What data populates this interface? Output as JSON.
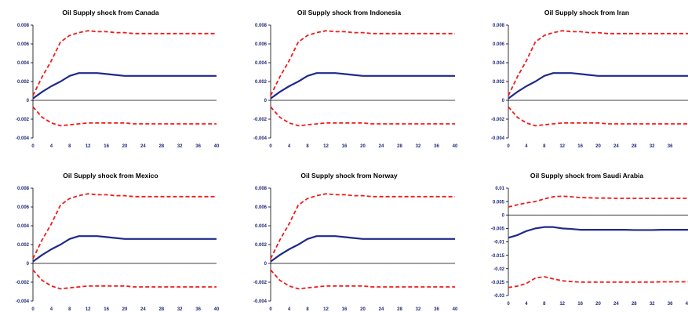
{
  "figure": {
    "axis_color": "#000000",
    "tick_label_color": "#1f2a7a",
    "mean_color": "#1f2a8a",
    "band_color": "#ee1c1c"
  },
  "chart_data": [
    {
      "type": "line",
      "title": "Oil Supply shock from Canada",
      "x_ticks": [
        0,
        4,
        8,
        12,
        16,
        20,
        24,
        28,
        32,
        36,
        40
      ],
      "y_ticks": [
        0.008,
        0.006,
        0.004,
        0.002,
        0,
        -0.002,
        -0.004
      ],
      "y_tick_labels": [
        "0.008",
        "0.006",
        "0.004",
        "0.002",
        "0",
        "-0.002",
        "-0.004"
      ],
      "xlim": [
        0,
        40
      ],
      "ylim": [
        -0.004,
        0.008
      ],
      "x": [
        0,
        2,
        4,
        6,
        8,
        10,
        12,
        14,
        16,
        18,
        20,
        22,
        24,
        26,
        28,
        30,
        32,
        34,
        36,
        38,
        40
      ],
      "series": [
        {
          "style": "solid",
          "values": [
            0.0002,
            0.0009,
            0.0015,
            0.002,
            0.0026,
            0.0029,
            0.0029,
            0.0029,
            0.0028,
            0.0027,
            0.0026,
            0.0026,
            0.0026,
            0.0026,
            0.0026,
            0.0026,
            0.0026,
            0.0026,
            0.0026,
            0.0026,
            0.0026
          ]
        },
        {
          "style": "dashed",
          "values": [
            0.0005,
            0.0025,
            0.0042,
            0.0062,
            0.0069,
            0.0072,
            0.0074,
            0.0073,
            0.0073,
            0.0072,
            0.0072,
            0.0071,
            0.0071,
            0.0071,
            0.0071,
            0.0071,
            0.0071,
            0.0071,
            0.0071,
            0.0071,
            0.0071
          ]
        },
        {
          "style": "dashed",
          "values": [
            -0.0007,
            -0.0018,
            -0.0024,
            -0.0027,
            -0.0026,
            -0.0025,
            -0.0024,
            -0.0024,
            -0.0024,
            -0.0024,
            -0.0024,
            -0.0025,
            -0.0025,
            -0.0025,
            -0.0025,
            -0.0025,
            -0.0025,
            -0.0025,
            -0.0025,
            -0.0025,
            -0.0025
          ]
        }
      ]
    },
    {
      "type": "line",
      "title": "Oil Supply shock from Indonesia",
      "x_ticks": [
        0,
        4,
        8,
        12,
        16,
        20,
        24,
        28,
        32,
        36,
        40
      ],
      "y_ticks": [
        0.008,
        0.006,
        0.004,
        0.002,
        0,
        -0.002,
        -0.004
      ],
      "y_tick_labels": [
        "0.008",
        "0.006",
        "0.004",
        "0.002",
        "0",
        "-0.002",
        "-0.004"
      ],
      "xlim": [
        0,
        40
      ],
      "ylim": [
        -0.004,
        0.008
      ],
      "x": [
        0,
        2,
        4,
        6,
        8,
        10,
        12,
        14,
        16,
        18,
        20,
        22,
        24,
        26,
        28,
        30,
        32,
        34,
        36,
        38,
        40
      ],
      "series": [
        {
          "style": "solid",
          "values": [
            0.0002,
            0.0009,
            0.0015,
            0.002,
            0.0026,
            0.0029,
            0.0029,
            0.0029,
            0.0028,
            0.0027,
            0.0026,
            0.0026,
            0.0026,
            0.0026,
            0.0026,
            0.0026,
            0.0026,
            0.0026,
            0.0026,
            0.0026,
            0.0026
          ]
        },
        {
          "style": "dashed",
          "values": [
            0.0005,
            0.0025,
            0.0042,
            0.0062,
            0.0069,
            0.0072,
            0.0074,
            0.0073,
            0.0073,
            0.0072,
            0.0072,
            0.0071,
            0.0071,
            0.0071,
            0.0071,
            0.0071,
            0.0071,
            0.0071,
            0.0071,
            0.0071,
            0.0071
          ]
        },
        {
          "style": "dashed",
          "values": [
            -0.0007,
            -0.0018,
            -0.0024,
            -0.0027,
            -0.0026,
            -0.0025,
            -0.0024,
            -0.0024,
            -0.0024,
            -0.0024,
            -0.0024,
            -0.0025,
            -0.0025,
            -0.0025,
            -0.0025,
            -0.0025,
            -0.0025,
            -0.0025,
            -0.0025,
            -0.0025,
            -0.0025
          ]
        }
      ]
    },
    {
      "type": "line",
      "title": "Oil Supply shock from Iran",
      "x_ticks": [
        0,
        4,
        8,
        12,
        16,
        20,
        24,
        28,
        32,
        36
      ],
      "y_ticks": [
        0.008,
        0.006,
        0.004,
        0.002,
        0,
        -0.002,
        -0.004
      ],
      "y_tick_labels": [
        "0.008",
        "0.006",
        "0.004",
        "0.002",
        "0",
        "-0.002",
        "-0.004"
      ],
      "xlim": [
        0,
        40
      ],
      "ylim": [
        -0.004,
        0.008
      ],
      "x": [
        0,
        2,
        4,
        6,
        8,
        10,
        12,
        14,
        16,
        18,
        20,
        22,
        24,
        26,
        28,
        30,
        32,
        34,
        36,
        38,
        40
      ],
      "series": [
        {
          "style": "solid",
          "values": [
            0.0002,
            0.0009,
            0.0015,
            0.002,
            0.0026,
            0.0029,
            0.0029,
            0.0029,
            0.0028,
            0.0027,
            0.0026,
            0.0026,
            0.0026,
            0.0026,
            0.0026,
            0.0026,
            0.0026,
            0.0026,
            0.0026,
            0.0026,
            0.0026
          ]
        },
        {
          "style": "dashed",
          "values": [
            0.0005,
            0.0025,
            0.0042,
            0.0062,
            0.0069,
            0.0072,
            0.0074,
            0.0073,
            0.0073,
            0.0072,
            0.0072,
            0.0071,
            0.0071,
            0.0071,
            0.0071,
            0.0071,
            0.0071,
            0.0071,
            0.0071,
            0.0071,
            0.0071
          ]
        },
        {
          "style": "dashed",
          "values": [
            -0.0007,
            -0.0018,
            -0.0024,
            -0.0027,
            -0.0026,
            -0.0025,
            -0.0024,
            -0.0024,
            -0.0024,
            -0.0024,
            -0.0024,
            -0.0025,
            -0.0025,
            -0.0025,
            -0.0025,
            -0.0025,
            -0.0025,
            -0.0025,
            -0.0025,
            -0.0025,
            -0.0025
          ]
        }
      ]
    },
    {
      "type": "line",
      "title": "Oil Supply shock from Mexico",
      "x_ticks": [
        0,
        4,
        8,
        12,
        16,
        20,
        24,
        28,
        32,
        36,
        40
      ],
      "y_ticks": [
        0.008,
        0.006,
        0.004,
        0.002,
        0,
        -0.002,
        -0.004
      ],
      "y_tick_labels": [
        "0.008",
        "0.006",
        "0.004",
        "0.002",
        "0",
        "-0.002",
        "-0.004"
      ],
      "xlim": [
        0,
        40
      ],
      "ylim": [
        -0.004,
        0.008
      ],
      "x": [
        0,
        2,
        4,
        6,
        8,
        10,
        12,
        14,
        16,
        18,
        20,
        22,
        24,
        26,
        28,
        30,
        32,
        34,
        36,
        38,
        40
      ],
      "series": [
        {
          "style": "solid",
          "values": [
            0.0002,
            0.0009,
            0.0015,
            0.002,
            0.0026,
            0.0029,
            0.0029,
            0.0029,
            0.0028,
            0.0027,
            0.0026,
            0.0026,
            0.0026,
            0.0026,
            0.0026,
            0.0026,
            0.0026,
            0.0026,
            0.0026,
            0.0026,
            0.0026
          ]
        },
        {
          "style": "dashed",
          "values": [
            0.0005,
            0.0025,
            0.0042,
            0.0062,
            0.0069,
            0.0072,
            0.0074,
            0.0073,
            0.0073,
            0.0072,
            0.0072,
            0.0071,
            0.0071,
            0.0071,
            0.0071,
            0.0071,
            0.0071,
            0.0071,
            0.0071,
            0.0071,
            0.0071
          ]
        },
        {
          "style": "dashed",
          "values": [
            -0.0007,
            -0.0018,
            -0.0024,
            -0.0027,
            -0.0026,
            -0.0025,
            -0.0024,
            -0.0024,
            -0.0024,
            -0.0024,
            -0.0024,
            -0.0025,
            -0.0025,
            -0.0025,
            -0.0025,
            -0.0025,
            -0.0025,
            -0.0025,
            -0.0025,
            -0.0025,
            -0.0025
          ]
        }
      ]
    },
    {
      "type": "line",
      "title": "Oil Supply shock from Norway",
      "x_ticks": [
        0,
        4,
        8,
        12,
        16,
        20,
        24,
        28,
        32,
        36,
        40
      ],
      "y_ticks": [
        0.008,
        0.006,
        0.004,
        0.002,
        0,
        -0.002,
        -0.004
      ],
      "y_tick_labels": [
        "0.008",
        "0.006",
        "0.004",
        "0.002",
        "0",
        "-0.002",
        "-0.004"
      ],
      "xlim": [
        0,
        40
      ],
      "ylim": [
        -0.004,
        0.008
      ],
      "x": [
        0,
        2,
        4,
        6,
        8,
        10,
        12,
        14,
        16,
        18,
        20,
        22,
        24,
        26,
        28,
        30,
        32,
        34,
        36,
        38,
        40
      ],
      "series": [
        {
          "style": "solid",
          "values": [
            0.0002,
            0.0009,
            0.0015,
            0.002,
            0.0026,
            0.0029,
            0.0029,
            0.0029,
            0.0028,
            0.0027,
            0.0026,
            0.0026,
            0.0026,
            0.0026,
            0.0026,
            0.0026,
            0.0026,
            0.0026,
            0.0026,
            0.0026,
            0.0026
          ]
        },
        {
          "style": "dashed",
          "values": [
            0.0005,
            0.0025,
            0.0042,
            0.0062,
            0.0069,
            0.0072,
            0.0074,
            0.0073,
            0.0073,
            0.0072,
            0.0072,
            0.0071,
            0.0071,
            0.0071,
            0.0071,
            0.0071,
            0.0071,
            0.0071,
            0.0071,
            0.0071,
            0.0071
          ]
        },
        {
          "style": "dashed",
          "values": [
            -0.0007,
            -0.0018,
            -0.0024,
            -0.0027,
            -0.0026,
            -0.0025,
            -0.0024,
            -0.0024,
            -0.0024,
            -0.0024,
            -0.0024,
            -0.0025,
            -0.0025,
            -0.0025,
            -0.0025,
            -0.0025,
            -0.0025,
            -0.0025,
            -0.0025,
            -0.0025,
            -0.0025
          ]
        }
      ]
    },
    {
      "type": "line",
      "title": "Oil Supply shock from Saudi Arabia",
      "x_ticks": [
        0,
        4,
        8,
        12,
        16,
        20,
        24,
        28,
        32,
        36,
        40
      ],
      "y_ticks": [
        0.01,
        0.005,
        0,
        -0.005,
        -0.01,
        -0.015,
        -0.02,
        -0.025,
        -0.03
      ],
      "y_tick_labels": [
        "0.01",
        "0.005",
        "0",
        "-0.005",
        "-0.01",
        "-0.015",
        "-0.02",
        "-0.025",
        "-0.03"
      ],
      "xlim": [
        0,
        40
      ],
      "ylim": [
        -0.03,
        0.01
      ],
      "x": [
        0,
        2,
        4,
        6,
        8,
        10,
        12,
        14,
        16,
        18,
        20,
        22,
        24,
        26,
        28,
        30,
        32,
        34,
        36,
        38,
        40
      ],
      "series": [
        {
          "style": "solid",
          "values": [
            -0.0085,
            -0.0075,
            -0.006,
            -0.005,
            -0.0045,
            -0.0045,
            -0.005,
            -0.0052,
            -0.0055,
            -0.0055,
            -0.0055,
            -0.0055,
            -0.0055,
            -0.0055,
            -0.0056,
            -0.0056,
            -0.0056,
            -0.0055,
            -0.0055,
            -0.0055,
            -0.0055
          ]
        },
        {
          "style": "dashed",
          "values": [
            0.003,
            0.0038,
            0.0045,
            0.005,
            0.006,
            0.0068,
            0.007,
            0.0068,
            0.0065,
            0.0064,
            0.0063,
            0.0063,
            0.0062,
            0.0062,
            0.0062,
            0.0062,
            0.0062,
            0.0062,
            0.0062,
            0.0062,
            0.0062
          ]
        },
        {
          "style": "dashed",
          "values": [
            -0.027,
            -0.0265,
            -0.0255,
            -0.0235,
            -0.023,
            -0.0238,
            -0.0245,
            -0.0248,
            -0.025,
            -0.025,
            -0.025,
            -0.025,
            -0.025,
            -0.025,
            -0.025,
            -0.025,
            -0.025,
            -0.0249,
            -0.0249,
            -0.0249,
            -0.0249
          ]
        }
      ]
    }
  ]
}
